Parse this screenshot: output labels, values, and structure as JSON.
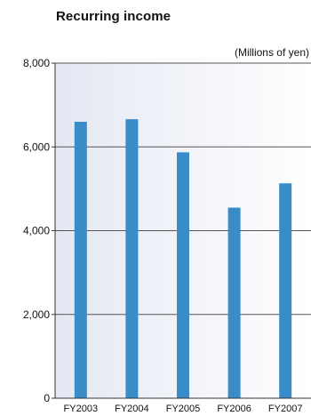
{
  "chart_data": {
    "type": "bar",
    "title": "Recurring income",
    "unit_label": "(Millions of yen)",
    "categories": [
      "FY2003",
      "FY2004",
      "FY2005",
      "FY2006",
      "FY2007"
    ],
    "values": [
      6600,
      6660,
      5870,
      4550,
      5130
    ],
    "ylim": [
      0,
      8000
    ],
    "yticks": [
      0,
      2000,
      4000,
      6000,
      8000
    ],
    "ytick_labels": [
      "0",
      "2,000",
      "4,000",
      "6,000",
      "8,000"
    ],
    "grid": true,
    "colors": {
      "bar": "#3a8cc8",
      "plot_background_left": "#e4e8f3",
      "plot_background_right": "#ffffff",
      "gridline": "#555555",
      "axis": "#333333"
    }
  }
}
